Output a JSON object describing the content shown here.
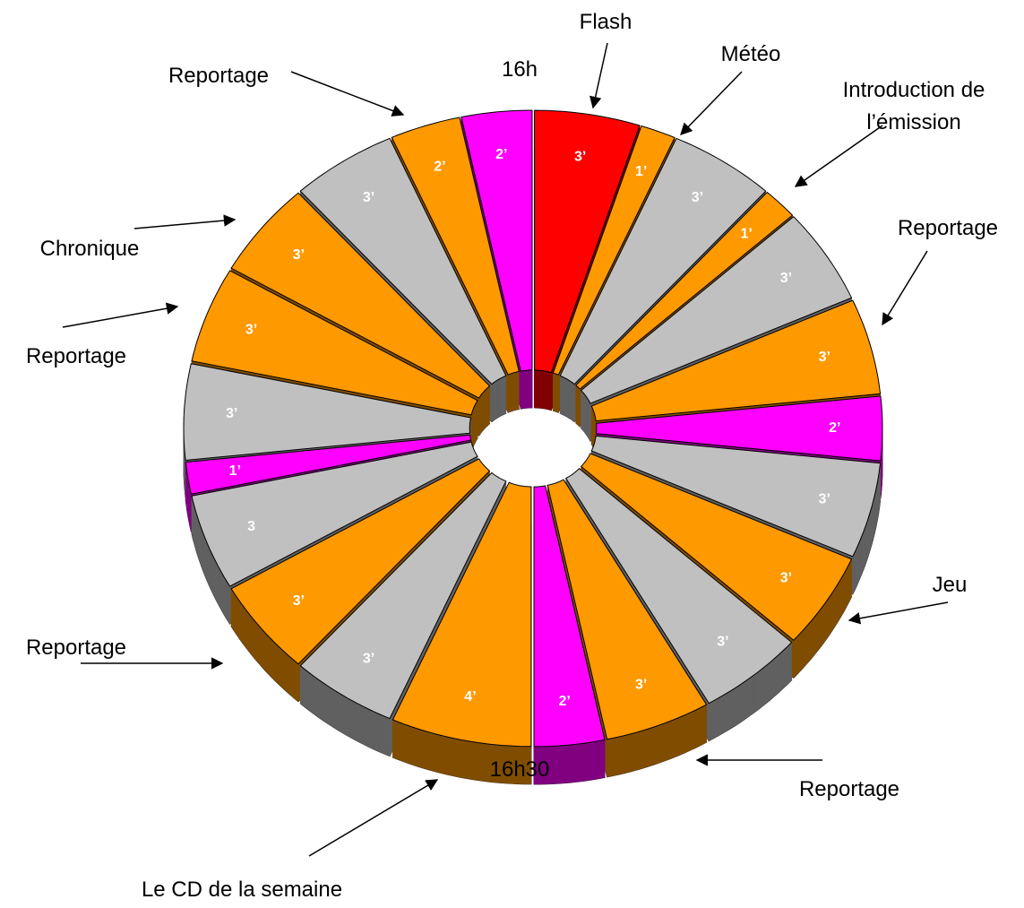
{
  "chart_data": {
    "type": "pie",
    "values": [
      3,
      1,
      3,
      1,
      3,
      3,
      2,
      3,
      3,
      3,
      3,
      2,
      4,
      3,
      3,
      3,
      1,
      3,
      3,
      3,
      3,
      2,
      2
    ],
    "value_labels": [
      "3’",
      "1’",
      "3’",
      "1’",
      "3’",
      "3’",
      "2’",
      "3’",
      "3’",
      "3’",
      "3’",
      "2’",
      "4’",
      "3’",
      "3’",
      "3",
      "1’",
      "3’",
      "3’",
      "3’",
      "3’",
      "2’",
      "2’"
    ],
    "colors": [
      "#ff0000",
      "#ff9900",
      "#c0c0c0",
      "#ff9900",
      "#c0c0c0",
      "#ff9900",
      "#ff00ff",
      "#c0c0c0",
      "#ff9900",
      "#c0c0c0",
      "#ff9900",
      "#ff00ff",
      "#ff9900",
      "#c0c0c0",
      "#ff9900",
      "#c0c0c0",
      "#ff00ff",
      "#c0c0c0",
      "#ff9900",
      "#ff9900",
      "#c0c0c0",
      "#ff9900",
      "#ff00ff"
    ],
    "annotations": [
      [
        "Flash"
      ],
      [
        "Météo"
      ],
      [
        "Introduction de",
        "l’émission"
      ],
      [
        "Reportage"
      ],
      [
        "Jeu"
      ],
      [
        "Reportage"
      ],
      [
        "Le CD de la semaine"
      ],
      [
        "Reportage"
      ],
      [
        "Reportage"
      ],
      [
        "Chronique"
      ],
      [
        "Reportage"
      ],
      [
        "16h"
      ],
      [
        "16h30"
      ]
    ]
  }
}
